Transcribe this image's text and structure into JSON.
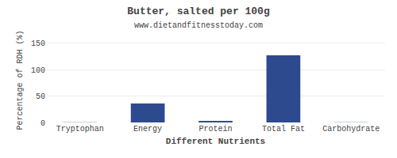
{
  "chart_data": {
    "type": "bar",
    "title": "Butter, salted per 100g",
    "subtitle": "www.dietandfitnesstoday.com",
    "xlabel": "Different Nutrients",
    "ylabel": "Percentage of RDH (%)",
    "categories": [
      "Tryptophan",
      "Energy",
      "Protein",
      "Total Fat",
      "Carbohydrate"
    ],
    "values": [
      0.5,
      36,
      3,
      127,
      0.5
    ],
    "color": "#2e4a8e",
    "ylim": [
      0,
      160
    ],
    "yticks": [
      0,
      50,
      100,
      150
    ],
    "grid": true
  }
}
